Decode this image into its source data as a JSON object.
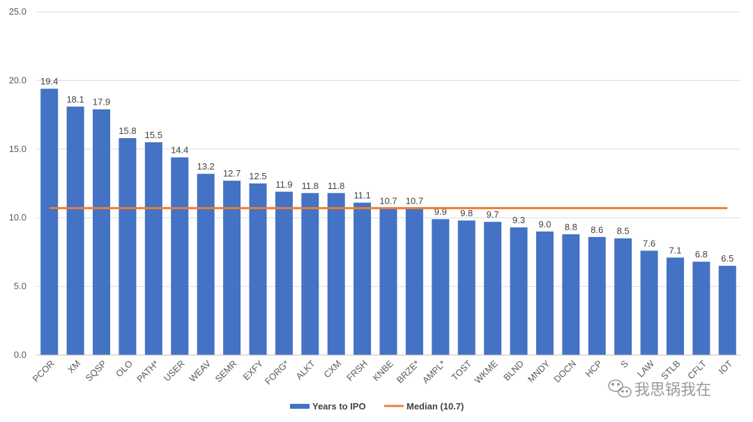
{
  "chart_data": {
    "type": "bar",
    "categories": [
      "PCOR",
      "XM",
      "SQSP",
      "OLO",
      "PATH*",
      "USER",
      "WEAV",
      "SEMR",
      "EXFY",
      "FORG*",
      "ALKT",
      "CXM",
      "FRSH",
      "KNBE",
      "BRZE*",
      "AMPL*",
      "TOST",
      "WKME",
      "BLND",
      "MNDY",
      "DOCN",
      "HCP",
      "S",
      "LAW",
      "STLB",
      "CFLT",
      "IOT"
    ],
    "series": [
      {
        "name": "Years to IPO",
        "color": "#4472c4",
        "values": [
          19.4,
          18.1,
          17.9,
          15.8,
          15.5,
          14.4,
          13.2,
          12.7,
          12.5,
          11.9,
          11.8,
          11.8,
          11.1,
          10.7,
          10.7,
          9.9,
          9.8,
          9.7,
          9.3,
          9.0,
          8.8,
          8.6,
          8.5,
          7.6,
          7.1,
          6.8,
          6.5
        ]
      }
    ],
    "data_labels": [
      "19.4",
      "18.1",
      "17.9",
      "15.8",
      "15.5",
      "14.4",
      "13.2",
      "12.7",
      "12.5",
      "11.9",
      "11.8",
      "11.8",
      "11.1",
      "10.7",
      "10.7",
      "9.9",
      "9.8",
      "9.7",
      "9.3",
      "9.0",
      "8.8",
      "8.6",
      "8.5",
      "7.6",
      "7.1",
      "6.8",
      "6.5"
    ],
    "reference_line": {
      "name": "Median (10.7)",
      "value": 10.7,
      "color": "#ed7d31"
    },
    "y_ticks": [
      "0.0",
      "5.0",
      "10.0",
      "15.0",
      "20.0",
      "25.0"
    ],
    "ylim": [
      0,
      25
    ],
    "grid": true,
    "legend_position": "bottom",
    "title": "",
    "xlabel": "",
    "ylabel": ""
  },
  "watermark": {
    "icon": "wechat-icon",
    "text": "我思锅我在",
    "color": "#9a9a9a"
  }
}
